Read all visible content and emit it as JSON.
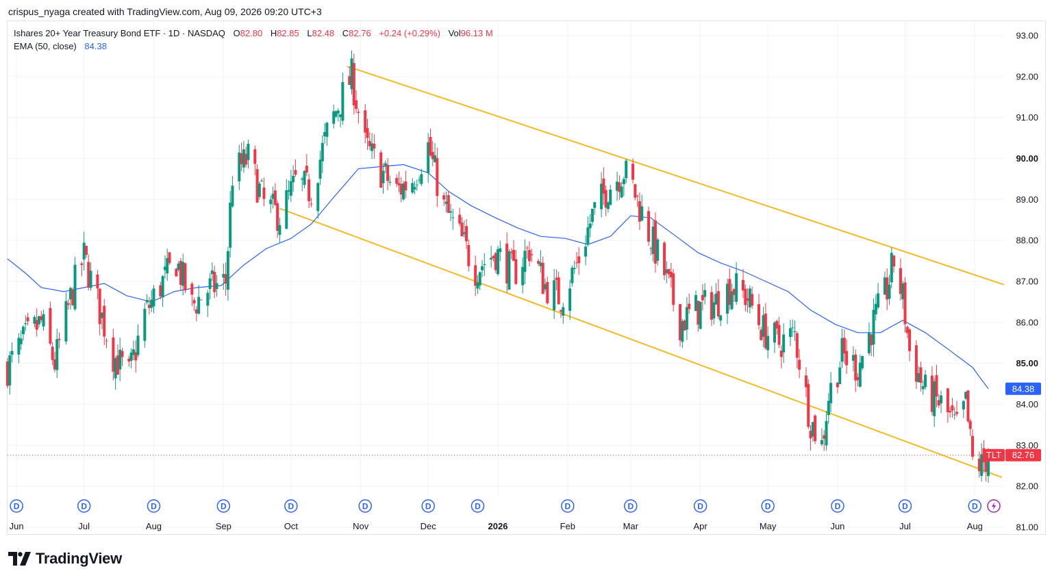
{
  "header": {
    "credit": "crispus_nyaga created with TradingView.com, Aug 09, 2026 09:20 UTC+3"
  },
  "legend": {
    "symbol": "Ishares 20+ Year Treasury Bond ETF · 1D · NASDAQ",
    "o_label": "O",
    "o_value": "82.80",
    "h_label": "H",
    "h_value": "82.85",
    "l_label": "L",
    "l_value": "82.48",
    "c_label": "C",
    "c_value": "82.76",
    "change": "+0.24 (+0.29%)",
    "vol_label": "Vol",
    "vol_value": "96.13 M",
    "ema_label": "EMA (50, close)",
    "ema_value": "84.38"
  },
  "footer": {
    "brand": "TradingView",
    "logo_icon": "tradingview-logo-icon"
  },
  "colors": {
    "up": "#089981",
    "down": "#f23645",
    "ema": "#2962ff",
    "channel": "#f5b925",
    "grid": "#f0f3fa",
    "tag_blue": "#2962ff",
    "tag_red": "#f23645"
  },
  "chart_data": {
    "type": "candlestick",
    "ylim": [
      80.9,
      93.25
    ],
    "y_ticks": [
      "93.00",
      "92.00",
      "91.00",
      "90.00",
      "89.00",
      "88.00",
      "87.00",
      "86.00",
      "85.00",
      "84.00",
      "83.00",
      "82.00",
      "81.00"
    ],
    "y_ticks_bold": [
      "90.00",
      "85.00"
    ],
    "x_ticks": [
      {
        "date": "2025-06-01",
        "label": "Jun"
      },
      {
        "date": "2025-07-01",
        "label": "Jul"
      },
      {
        "date": "2025-08-01",
        "label": "Aug"
      },
      {
        "date": "2025-09-01",
        "label": "Sep"
      },
      {
        "date": "2025-10-01",
        "label": "Oct"
      },
      {
        "date": "2025-11-01",
        "label": "Nov"
      },
      {
        "date": "2025-12-01",
        "label": "Dec"
      },
      {
        "date": "2026-01-01",
        "label": "2026"
      },
      {
        "date": "2026-02-01",
        "label": "Feb"
      },
      {
        "date": "2026-03-01",
        "label": "Mar"
      },
      {
        "date": "2026-04-01",
        "label": "Apr"
      },
      {
        "date": "2026-05-01",
        "label": "May"
      },
      {
        "date": "2026-06-01",
        "label": "Jun"
      },
      {
        "date": "2026-07-01",
        "label": "Jul"
      },
      {
        "date": "2026-08-01",
        "label": "Aug"
      }
    ],
    "x_range": [
      "2025-05-28",
      "2026-08-14"
    ],
    "close": [
      {
        "date": "2025-05-28",
        "value": 84.9
      },
      {
        "date": "2025-06-05",
        "value": 85.6
      },
      {
        "date": "2025-06-12",
        "value": 86.0
      },
      {
        "date": "2025-06-18",
        "value": 85.0
      },
      {
        "date": "2025-06-26",
        "value": 86.8
      },
      {
        "date": "2025-07-01",
        "value": 87.6
      },
      {
        "date": "2025-07-08",
        "value": 86.3
      },
      {
        "date": "2025-07-14",
        "value": 85.2
      },
      {
        "date": "2025-07-21",
        "value": 84.7
      },
      {
        "date": "2025-07-28",
        "value": 86.2
      },
      {
        "date": "2025-08-04",
        "value": 86.9
      },
      {
        "date": "2025-08-11",
        "value": 87.5
      },
      {
        "date": "2025-08-18",
        "value": 86.4
      },
      {
        "date": "2025-08-25",
        "value": 86.8
      },
      {
        "date": "2025-09-02",
        "value": 87.0
      },
      {
        "date": "2025-09-05",
        "value": 89.6
      },
      {
        "date": "2025-09-12",
        "value": 90.0
      },
      {
        "date": "2025-09-19",
        "value": 88.9
      },
      {
        "date": "2025-09-26",
        "value": 88.6
      },
      {
        "date": "2025-10-03",
        "value": 89.4
      },
      {
        "date": "2025-10-10",
        "value": 89.2
      },
      {
        "date": "2025-10-17",
        "value": 90.6
      },
      {
        "date": "2025-10-22",
        "value": 91.3
      },
      {
        "date": "2025-10-28",
        "value": 92.0
      },
      {
        "date": "2025-11-03",
        "value": 90.3
      },
      {
        "date": "2025-11-10",
        "value": 89.7
      },
      {
        "date": "2025-11-17",
        "value": 89.2
      },
      {
        "date": "2025-11-24",
        "value": 89.5
      },
      {
        "date": "2025-12-01",
        "value": 90.3
      },
      {
        "date": "2025-12-08",
        "value": 88.8
      },
      {
        "date": "2025-12-15",
        "value": 88.1
      },
      {
        "date": "2025-12-22",
        "value": 87.3
      },
      {
        "date": "2025-12-31",
        "value": 87.7
      },
      {
        "date": "2026-01-08",
        "value": 87.2
      },
      {
        "date": "2026-01-15",
        "value": 87.8
      },
      {
        "date": "2026-01-22",
        "value": 86.9
      },
      {
        "date": "2026-01-29",
        "value": 86.6
      },
      {
        "date": "2026-02-05",
        "value": 87.4
      },
      {
        "date": "2026-02-12",
        "value": 88.6
      },
      {
        "date": "2026-02-19",
        "value": 89.3
      },
      {
        "date": "2026-02-26",
        "value": 89.7
      },
      {
        "date": "2026-03-02",
        "value": 89.3
      },
      {
        "date": "2026-03-09",
        "value": 88.2
      },
      {
        "date": "2026-03-16",
        "value": 87.2
      },
      {
        "date": "2026-03-23",
        "value": 86.0
      },
      {
        "date": "2026-03-30",
        "value": 86.3
      },
      {
        "date": "2026-04-08",
        "value": 86.5
      },
      {
        "date": "2026-04-15",
        "value": 86.9
      },
      {
        "date": "2026-04-22",
        "value": 86.6
      },
      {
        "date": "2026-04-29",
        "value": 85.8
      },
      {
        "date": "2026-05-06",
        "value": 85.5
      },
      {
        "date": "2026-05-13",
        "value": 85.7
      },
      {
        "date": "2026-05-20",
        "value": 83.6
      },
      {
        "date": "2026-05-25",
        "value": 83.0
      },
      {
        "date": "2026-05-28",
        "value": 84.2
      },
      {
        "date": "2026-06-03",
        "value": 85.2
      },
      {
        "date": "2026-06-10",
        "value": 84.9
      },
      {
        "date": "2026-06-17",
        "value": 86.0
      },
      {
        "date": "2026-06-23",
        "value": 86.8
      },
      {
        "date": "2026-06-26",
        "value": 87.5
      },
      {
        "date": "2026-06-30",
        "value": 86.6
      },
      {
        "date": "2026-07-03",
        "value": 85.3
      },
      {
        "date": "2026-07-10",
        "value": 84.3
      },
      {
        "date": "2026-07-17",
        "value": 84.0
      },
      {
        "date": "2026-07-24",
        "value": 83.4
      },
      {
        "date": "2026-07-28",
        "value": 84.0
      },
      {
        "date": "2026-07-31",
        "value": 82.6
      },
      {
        "date": "2026-08-04",
        "value": 82.5
      },
      {
        "date": "2026-08-07",
        "value": 82.76
      }
    ],
    "ema50": [
      {
        "date": "2025-05-28",
        "value": 87.55
      },
      {
        "date": "2025-06-05",
        "value": 87.2
      },
      {
        "date": "2025-06-12",
        "value": 86.85
      },
      {
        "date": "2025-06-22",
        "value": 86.75
      },
      {
        "date": "2025-07-01",
        "value": 86.85
      },
      {
        "date": "2025-07-10",
        "value": 86.95
      },
      {
        "date": "2025-07-20",
        "value": 86.65
      },
      {
        "date": "2025-07-31",
        "value": 86.5
      },
      {
        "date": "2025-08-10",
        "value": 86.75
      },
      {
        "date": "2025-08-20",
        "value": 86.85
      },
      {
        "date": "2025-08-31",
        "value": 86.9
      },
      {
        "date": "2025-09-10",
        "value": 87.4
      },
      {
        "date": "2025-09-20",
        "value": 87.8
      },
      {
        "date": "2025-10-01",
        "value": 88.05
      },
      {
        "date": "2025-10-10",
        "value": 88.4
      },
      {
        "date": "2025-10-20",
        "value": 89.05
      },
      {
        "date": "2025-10-31",
        "value": 89.75
      },
      {
        "date": "2025-11-10",
        "value": 89.8
      },
      {
        "date": "2025-11-20",
        "value": 89.85
      },
      {
        "date": "2025-12-01",
        "value": 89.65
      },
      {
        "date": "2025-12-10",
        "value": 89.2
      },
      {
        "date": "2025-12-20",
        "value": 88.85
      },
      {
        "date": "2025-12-31",
        "value": 88.55
      },
      {
        "date": "2026-01-10",
        "value": 88.3
      },
      {
        "date": "2026-01-20",
        "value": 88.1
      },
      {
        "date": "2026-01-31",
        "value": 88.05
      },
      {
        "date": "2026-02-10",
        "value": 87.9
      },
      {
        "date": "2026-02-20",
        "value": 88.1
      },
      {
        "date": "2026-03-01",
        "value": 88.6
      },
      {
        "date": "2026-03-10",
        "value": 88.55
      },
      {
        "date": "2026-03-20",
        "value": 88.15
      },
      {
        "date": "2026-03-31",
        "value": 87.7
      },
      {
        "date": "2026-04-10",
        "value": 87.45
      },
      {
        "date": "2026-04-20",
        "value": 87.25
      },
      {
        "date": "2026-04-30",
        "value": 87.0
      },
      {
        "date": "2026-05-10",
        "value": 86.75
      },
      {
        "date": "2026-05-20",
        "value": 86.3
      },
      {
        "date": "2026-05-31",
        "value": 85.95
      },
      {
        "date": "2026-06-10",
        "value": 85.75
      },
      {
        "date": "2026-06-20",
        "value": 85.75
      },
      {
        "date": "2026-06-30",
        "value": 86.05
      },
      {
        "date": "2026-07-10",
        "value": 85.75
      },
      {
        "date": "2026-07-20",
        "value": 85.35
      },
      {
        "date": "2026-07-31",
        "value": 84.9
      },
      {
        "date": "2026-08-07",
        "value": 84.38
      }
    ],
    "channel_upper": [
      {
        "date": "2025-10-26",
        "value": 92.25
      },
      {
        "date": "2026-08-14",
        "value": 86.92
      }
    ],
    "channel_lower": [
      {
        "date": "2025-09-26",
        "value": 88.78
      },
      {
        "date": "2026-08-13",
        "value": 82.22
      }
    ],
    "last_price": 82.76,
    "last_price_label": "82.76",
    "ema_tag": "84.38",
    "price_tag_symbol": "TLT",
    "dividend_marker": "D",
    "dividend_dates": [
      "2025-06-01",
      "2025-07-01",
      "2025-08-01",
      "2025-09-01",
      "2025-10-01",
      "2025-11-03",
      "2025-12-01",
      "2025-12-23",
      "2026-02-01",
      "2026-03-01",
      "2026-04-01",
      "2026-05-01",
      "2026-06-01",
      "2026-07-01",
      "2026-08-01"
    ],
    "flash_marker_date": "2026-08-07",
    "flash_icon": "lightning-icon"
  }
}
